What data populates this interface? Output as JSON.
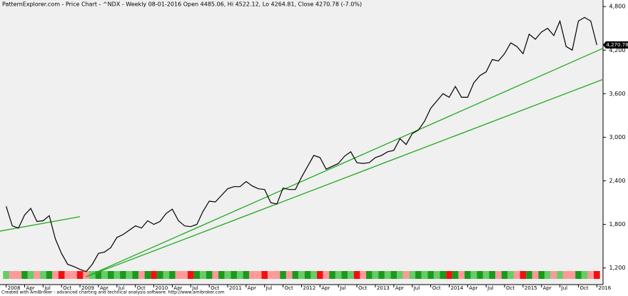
{
  "chart_data": {
    "type": "line",
    "title": "PatternExplorer.com - Price Chart - ^NDX - Weekly 08-01-2016 Open 4485.06, Hi 4522.12, Lo 4264.81, Close 4270.78 (-7.0%)",
    "footer": "Created with AmiBroker - advanced charting and technical analysis software. http://www.amibroker.com",
    "x": [
      "2008-01",
      "2008-02",
      "2008-03",
      "2008-04",
      "2008-05",
      "2008-06",
      "2008-07",
      "2008-08",
      "2008-09",
      "2008-10",
      "2008-11",
      "2008-12",
      "2009-01",
      "2009-02",
      "2009-03",
      "2009-04",
      "2009-05",
      "2009-06",
      "2009-07",
      "2009-08",
      "2009-09",
      "2009-10",
      "2009-11",
      "2009-12",
      "2010-01",
      "2010-02",
      "2010-03",
      "2010-04",
      "2010-05",
      "2010-06",
      "2010-07",
      "2010-08",
      "2010-09",
      "2010-10",
      "2010-11",
      "2010-12",
      "2011-01",
      "2011-02",
      "2011-03",
      "2011-04",
      "2011-05",
      "2011-06",
      "2011-07",
      "2011-08",
      "2011-09",
      "2011-10",
      "2011-11",
      "2011-12",
      "2012-01",
      "2012-02",
      "2012-03",
      "2012-04",
      "2012-05",
      "2012-06",
      "2012-07",
      "2012-08",
      "2012-09",
      "2012-10",
      "2012-11",
      "2012-12",
      "2013-01",
      "2013-02",
      "2013-03",
      "2013-04",
      "2013-05",
      "2013-06",
      "2013-07",
      "2013-08",
      "2013-09",
      "2013-10",
      "2013-11",
      "2013-12",
      "2014-01",
      "2014-02",
      "2014-03",
      "2014-04",
      "2014-05",
      "2014-06",
      "2014-07",
      "2014-08",
      "2014-09",
      "2014-10",
      "2014-11",
      "2014-12",
      "2015-01",
      "2015-02",
      "2015-03",
      "2015-04",
      "2015-05",
      "2015-06",
      "2015-07",
      "2015-08",
      "2015-09",
      "2015-10",
      "2015-11",
      "2015-12",
      "2016-01"
    ],
    "series": [
      {
        "name": "^NDX",
        "color": "#000000",
        "values": [
          2050,
          1780,
          1750,
          1930,
          2020,
          1840,
          1850,
          1920,
          1600,
          1400,
          1250,
          1220,
          1180,
          1150,
          1250,
          1400,
          1420,
          1480,
          1620,
          1660,
          1720,
          1780,
          1750,
          1850,
          1800,
          1840,
          1950,
          2010,
          1850,
          1780,
          1770,
          1800,
          1980,
          2120,
          2110,
          2200,
          2290,
          2320,
          2320,
          2390,
          2330,
          2290,
          2280,
          2100,
          2080,
          2300,
          2280,
          2280,
          2450,
          2600,
          2750,
          2720,
          2560,
          2600,
          2640,
          2740,
          2800,
          2650,
          2640,
          2650,
          2720,
          2750,
          2800,
          2820,
          2980,
          2900,
          3050,
          3100,
          3220,
          3400,
          3500,
          3600,
          3550,
          3700,
          3550,
          3550,
          3750,
          3850,
          3900,
          4070,
          4050,
          4150,
          4300,
          4250,
          4150,
          4420,
          4350,
          4450,
          4500,
          4400,
          4600,
          4250,
          4200,
          4600,
          4650,
          4600,
          4270
        ]
      }
    ],
    "trendlines": [
      {
        "color": "#22aa22",
        "x": [
          "2007-12",
          "2009-01"
        ],
        "y": [
          1707,
          1907
        ]
      },
      {
        "color": "#22aa22",
        "x": [
          "2009-02",
          "2016-02"
        ],
        "y": [
          1080,
          4225
        ]
      },
      {
        "color": "#22aa22",
        "x": [
          "2009-02",
          "2016-02"
        ],
        "y": [
          1080,
          3797
        ]
      }
    ],
    "last_price": {
      "value": 4270.78,
      "label": "4,270.78"
    },
    "xlim": [
      "2007-12",
      "2016-02"
    ],
    "ylim": [
      1040,
      4890
    ],
    "yticks": [
      {
        "value": 1200,
        "label": "1,200"
      },
      {
        "value": 1800,
        "label": "1,800"
      },
      {
        "value": 2400,
        "label": "2,400"
      },
      {
        "value": 3000,
        "label": "3,000"
      },
      {
        "value": 3600,
        "label": "3,600"
      },
      {
        "value": 4200,
        "label": "4,200"
      },
      {
        "value": 4800,
        "label": "4,800"
      }
    ],
    "xticks": [
      {
        "value": "2008-01",
        "label": "2008"
      },
      {
        "value": "2008-04",
        "label": "Apr"
      },
      {
        "value": "2008-07",
        "label": "Jul"
      },
      {
        "value": "2008-10",
        "label": "Oct"
      },
      {
        "value": "2009-01",
        "label": "2009"
      },
      {
        "value": "2009-04",
        "label": "Apr"
      },
      {
        "value": "2009-07",
        "label": "Jul"
      },
      {
        "value": "2009-10",
        "label": "Oct"
      },
      {
        "value": "2010-01",
        "label": "2010"
      },
      {
        "value": "2010-04",
        "label": "Apr"
      },
      {
        "value": "2010-07",
        "label": "Jul"
      },
      {
        "value": "2010-10",
        "label": "Oct"
      },
      {
        "value": "2011-01",
        "label": "2011"
      },
      {
        "value": "2011-04",
        "label": "Apr"
      },
      {
        "value": "2011-07",
        "label": "Jul"
      },
      {
        "value": "2011-10",
        "label": "Oct"
      },
      {
        "value": "2012-01",
        "label": "2012"
      },
      {
        "value": "2012-04",
        "label": "Apr"
      },
      {
        "value": "2012-07",
        "label": "Jul"
      },
      {
        "value": "2012-10",
        "label": "Oct"
      },
      {
        "value": "2013-01",
        "label": "2013"
      },
      {
        "value": "2013-04",
        "label": "Apr"
      },
      {
        "value": "2013-07",
        "label": "Jul"
      },
      {
        "value": "2013-10",
        "label": "Oct"
      },
      {
        "value": "2014-01",
        "label": "2014"
      },
      {
        "value": "2014-04",
        "label": "Apr"
      },
      {
        "value": "2014-07",
        "label": "Jul"
      },
      {
        "value": "2014-10",
        "label": "Oct"
      },
      {
        "value": "2015-01",
        "label": "2015"
      },
      {
        "value": "2015-04",
        "label": "Apr"
      },
      {
        "value": "2015-07",
        "label": "Jul"
      },
      {
        "value": "2015-10",
        "label": "Oct"
      },
      {
        "value": "2016-01",
        "label": "2016"
      }
    ]
  }
}
